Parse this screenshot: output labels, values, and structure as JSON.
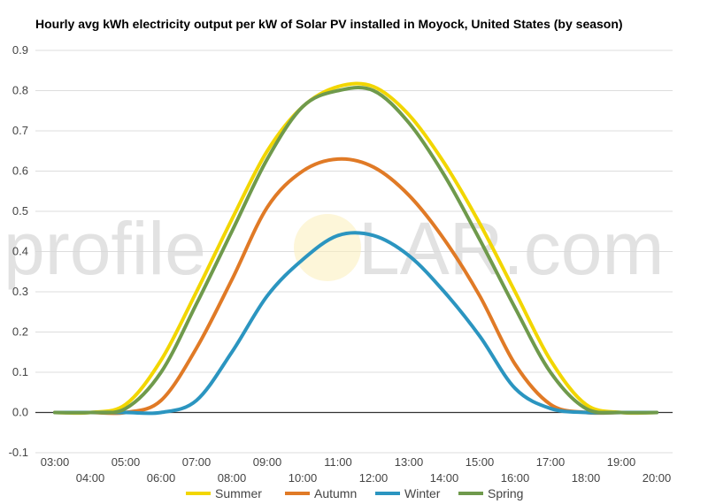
{
  "chart_data": {
    "type": "line",
    "title": "Hourly avg kWh electricity output per kW of Solar PV installed in Moyock, United States (by season)",
    "xlabel": "",
    "ylabel": "",
    "ylim": [
      -0.1,
      0.9
    ],
    "yticks": [
      -0.1,
      0.0,
      0.1,
      0.2,
      0.3,
      0.4,
      0.5,
      0.6,
      0.7,
      0.8,
      0.9
    ],
    "x": [
      "03:00",
      "04:00",
      "05:00",
      "06:00",
      "07:00",
      "08:00",
      "09:00",
      "10:00",
      "11:00",
      "12:00",
      "13:00",
      "14:00",
      "15:00",
      "16:00",
      "17:00",
      "18:00",
      "19:00",
      "20:00"
    ],
    "grid": true,
    "legend": "bottom",
    "series": [
      {
        "name": "Summer",
        "color": "#f2d600",
        "values": [
          0.0,
          0.0,
          0.02,
          0.13,
          0.3,
          0.48,
          0.65,
          0.76,
          0.81,
          0.81,
          0.74,
          0.62,
          0.47,
          0.3,
          0.13,
          0.02,
          0.0,
          0.0
        ]
      },
      {
        "name": "Autumn",
        "color": "#e07a26",
        "values": [
          0.0,
          0.0,
          0.0,
          0.03,
          0.16,
          0.33,
          0.51,
          0.6,
          0.63,
          0.61,
          0.54,
          0.43,
          0.29,
          0.12,
          0.02,
          0.0,
          0.0,
          0.0
        ]
      },
      {
        "name": "Winter",
        "color": "#2b95c0",
        "values": [
          0.0,
          0.0,
          0.0,
          0.0,
          0.03,
          0.15,
          0.29,
          0.38,
          0.44,
          0.44,
          0.39,
          0.3,
          0.19,
          0.06,
          0.01,
          0.0,
          0.0,
          0.0
        ]
      },
      {
        "name": "Spring",
        "color": "#6f9a4c",
        "values": [
          0.0,
          0.0,
          0.01,
          0.1,
          0.27,
          0.45,
          0.63,
          0.76,
          0.8,
          0.8,
          0.72,
          0.59,
          0.43,
          0.26,
          0.1,
          0.01,
          0.0,
          0.0
        ]
      }
    ]
  },
  "watermark": {
    "left": "profile",
    "right": "LAR.com"
  }
}
